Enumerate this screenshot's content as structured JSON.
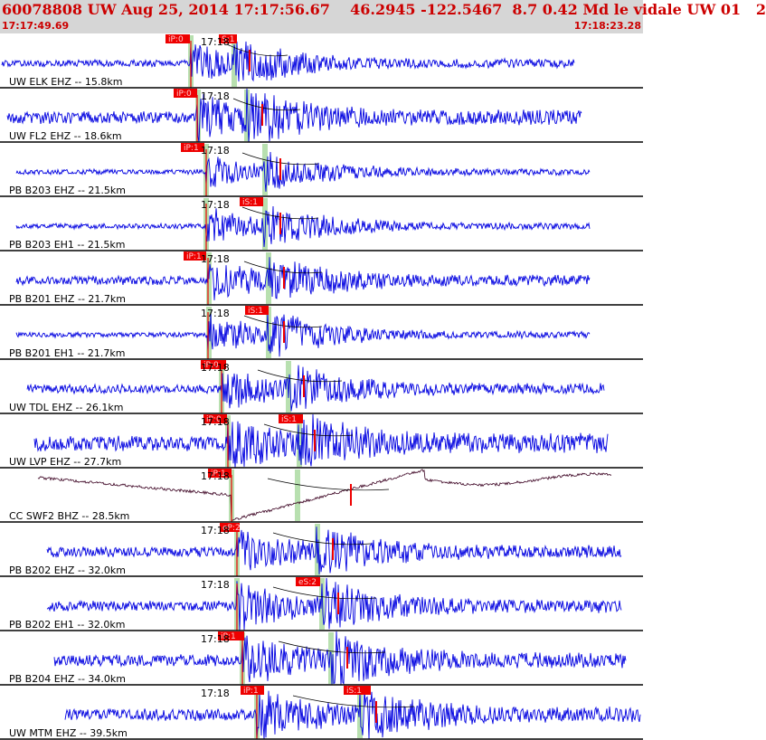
{
  "header": {
    "title": "60078808 UW Aug 25, 2014 17:17:56.67    46.2945 -122.5467  8.7 0.42 Md le vidale UW 01   2",
    "start_time": "17:17:49.69",
    "end_time": "17:18:23.28"
  },
  "time_mark_label": "17:18",
  "colors": {
    "trace": "#0000e0",
    "trace_broadband": "#3a0020",
    "pick_box": "#ee0000",
    "pick_window": "#b8e0b0",
    "moveout_curve": "#000000",
    "header_bg": "#d6d6d6",
    "header_text": "#cc0000"
  },
  "stations": [
    {
      "label": "UW ELK EHZ -- 15.8km",
      "picks": [
        "iP:0",
        "S:1"
      ],
      "trace": "blue"
    },
    {
      "label": "UW FL2 EHZ -- 18.6km",
      "picks": [
        "iP:0"
      ],
      "trace": "blue"
    },
    {
      "label": "PB B203 EHZ -- 21.5km",
      "picks": [
        "iP:1"
      ],
      "trace": "blue"
    },
    {
      "label": "PB B203 EH1 -- 21.5km",
      "picks": [
        "iS:1"
      ],
      "trace": "blue"
    },
    {
      "label": "PB B201 EHZ -- 21.7km",
      "picks": [
        "iP:1"
      ],
      "trace": "blue"
    },
    {
      "label": "PB B201 EH1 -- 21.7km",
      "picks": [
        "iS:1"
      ],
      "trace": "blue"
    },
    {
      "label": "UW TDL EHZ -- 26.1km",
      "picks": [
        "iP:0"
      ],
      "trace": "blue"
    },
    {
      "label": "UW LVP EHZ -- 27.7km",
      "picks": [
        "iP:0",
        "iS:1"
      ],
      "trace": "blue"
    },
    {
      "label": "CC SWF2 BHZ -- 28.5km",
      "picks": [
        "iP:1"
      ],
      "trace": "broadband"
    },
    {
      "label": "PB B202 EHZ -- 32.0km",
      "picks": [
        "eP:2"
      ],
      "trace": "blue"
    },
    {
      "label": "PB B202 EH1 -- 32.0km",
      "picks": [
        "eS:2"
      ],
      "trace": "blue"
    },
    {
      "label": "PB B204 EHZ -- 34.0km",
      "picks": [
        "iP:1"
      ],
      "trace": "blue"
    },
    {
      "label": "UW MTM EHZ -- 39.5km",
      "picks": [
        "iP:1",
        "iS:1"
      ],
      "trace": "blue"
    }
  ]
}
